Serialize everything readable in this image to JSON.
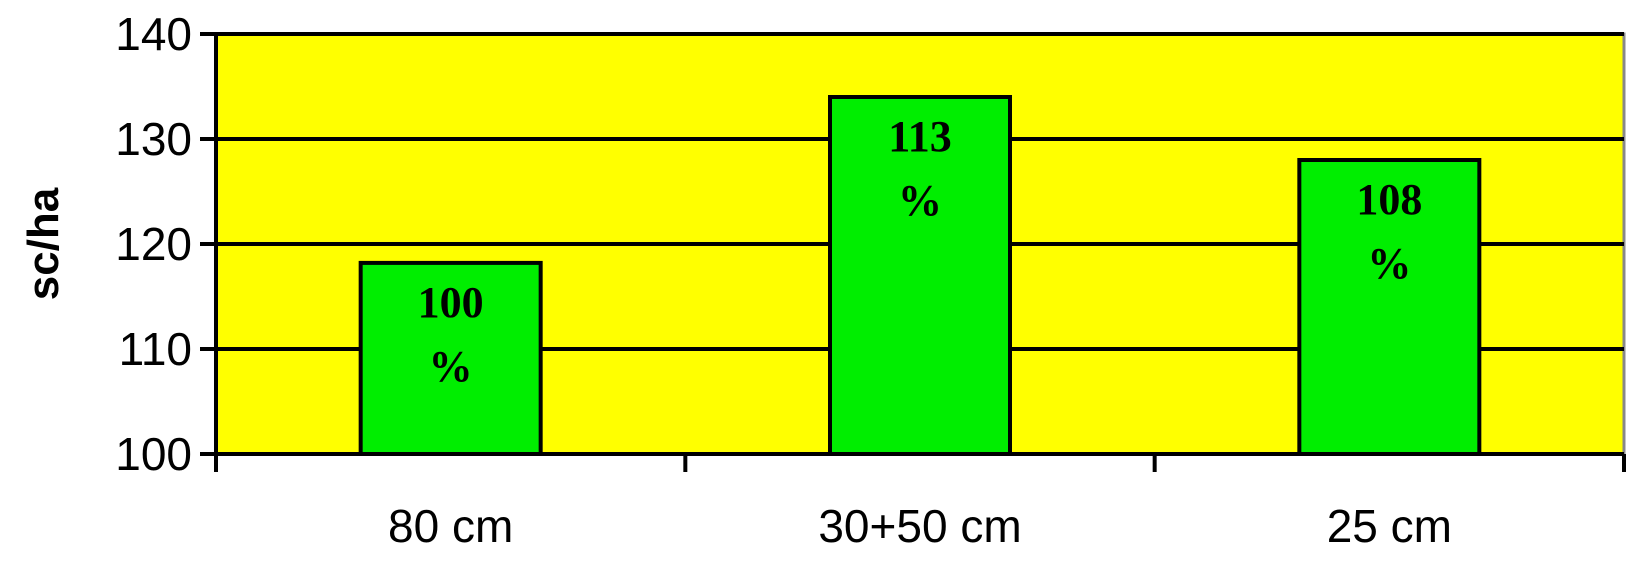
{
  "chart_data": {
    "type": "bar",
    "categories": [
      "80 cm",
      "30+50 cm",
      "25 cm"
    ],
    "values": [
      118.2,
      134.0,
      128.0
    ],
    "data_labels": [
      [
        "100",
        "%"
      ],
      [
        "113",
        "%"
      ],
      [
        "108",
        "%"
      ]
    ],
    "title": "",
    "xlabel": "",
    "ylabel": "sc/ha",
    "ylim": [
      100,
      140
    ],
    "yticks": [
      100,
      110,
      120,
      130,
      140
    ],
    "grid": true,
    "legend": "none",
    "colors": {
      "plot_background": "#ffff00",
      "bar_fill": "#00ee00",
      "bar_stroke": "#000000",
      "gridline": "#000000"
    }
  }
}
